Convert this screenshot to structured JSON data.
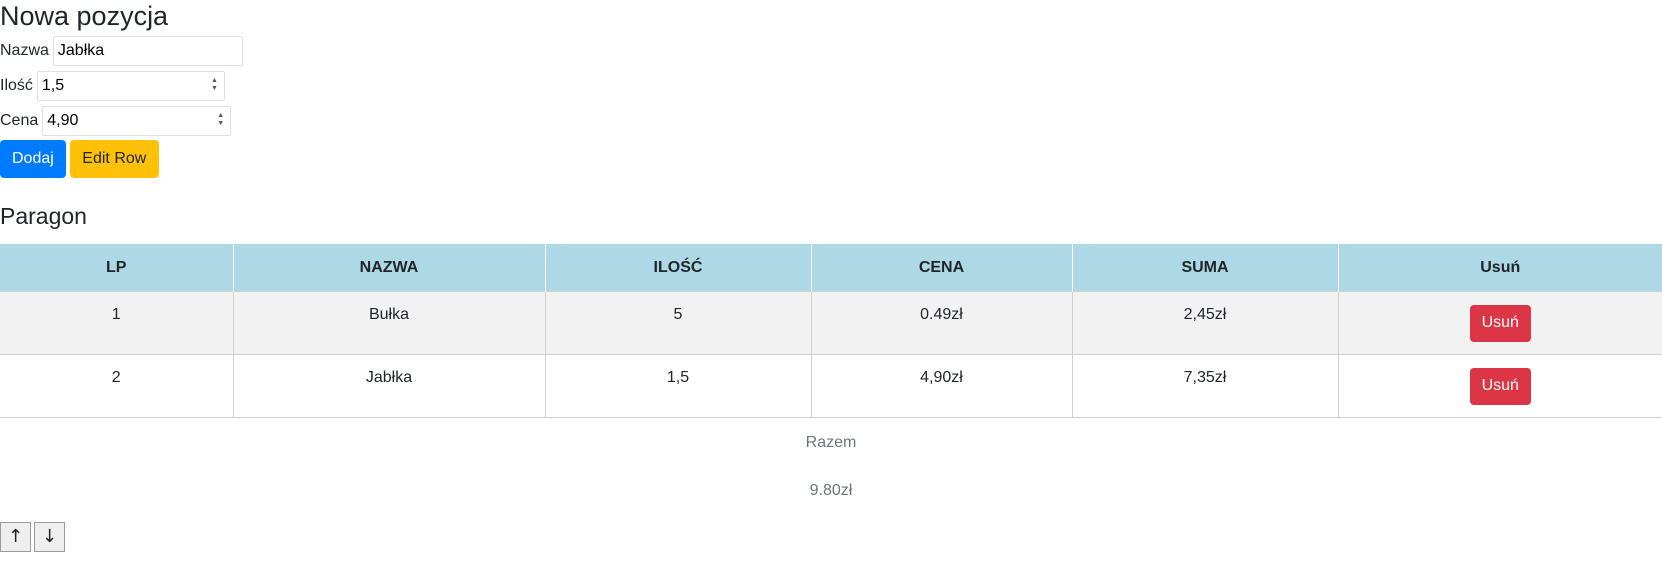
{
  "form": {
    "title": "Nowa pozycja",
    "name_label": "Nazwa",
    "name_value": "Jabłka",
    "qty_label": "Ilość",
    "qty_value": "1,5",
    "price_label": "Cena",
    "price_value": "4,90",
    "add_label": "Dodaj",
    "edit_label": "Edit Row"
  },
  "receipt": {
    "title": "Paragon",
    "headers": [
      "LP",
      "NAZWA",
      "ILOŚĆ",
      "CENA",
      "SUMA",
      "Usuń"
    ],
    "rows": [
      {
        "lp": "1",
        "name": "Bułka",
        "qty": "5",
        "price": "0.49zł",
        "sum": "2,45zł",
        "delete": "Usuń"
      },
      {
        "lp": "2",
        "name": "Jabłka",
        "qty": "1,5",
        "price": "4,90zł",
        "sum": "7,35zł",
        "delete": "Usuń"
      }
    ],
    "total_label": "Razem",
    "total_value": "9.80zł"
  },
  "sort": {
    "up_icon": "↑",
    "down_icon": "↓"
  },
  "colors": {
    "primary": "#007bff",
    "warning": "#ffc107",
    "danger": "#dc3545",
    "header_bg": "#add8e6",
    "stripe": "#f2f2f2"
  }
}
